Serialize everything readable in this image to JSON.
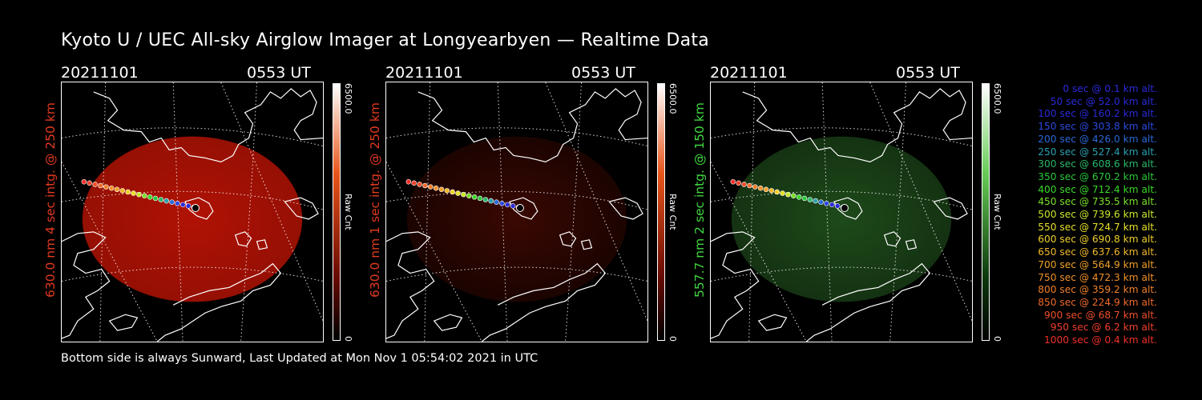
{
  "title": "Kyoto U / UEC All-sky Airglow Imager at Longyearbyen — Realtime Data",
  "footer": "Bottom side is always Sunward, Last Updated at Mon Nov  1 05:54:02 2021 in UTC",
  "panels": [
    {
      "date": "20211101",
      "time": "0553 UT",
      "ylabel": "630.0 nm 4 sec intg. @ 250 km",
      "label_color": "#e23a1f",
      "image_color": "#b01204",
      "intensity": 1.0,
      "cbar_max": "6500.0",
      "cbar_min": "0",
      "cbar_label": "Raw Cnt",
      "cbar_top": "#ffffff",
      "cbar_mid": "#e8551a",
      "cbar_low": "#6a0b03"
    },
    {
      "date": "20211101",
      "time": "0553 UT",
      "ylabel": "630.0 nm 1 sec intg. @ 250 km",
      "label_color": "#e23a1f",
      "image_color": "#3a0802",
      "intensity": 0.55,
      "cbar_max": "6500.0",
      "cbar_min": "0",
      "cbar_label": "Raw Cnt",
      "cbar_top": "#ffffff",
      "cbar_mid": "#e8551a",
      "cbar_low": "#6a0b03"
    },
    {
      "date": "20211101",
      "time": "0553 UT",
      "ylabel": "557.7 nm 2 sec intg. @ 150 km",
      "label_color": "#40d640",
      "image_color": "#1e4a1a",
      "intensity": 0.8,
      "cbar_max": "6500.0",
      "cbar_min": "0",
      "cbar_label": "Raw Cnt",
      "cbar_top": "#ffffff",
      "cbar_mid": "#66cc55",
      "cbar_low": "#0d3a0d"
    }
  ],
  "legend": [
    {
      "text": "0 sec @    0.1 km alt.",
      "color": "#2a2ad8"
    },
    {
      "text": "50 sec @   52.0 km alt.",
      "color": "#2a2ad8"
    },
    {
      "text": "100 sec @  160.2 km alt.",
      "color": "#2a2ad8"
    },
    {
      "text": "150 sec @  303.8 km alt.",
      "color": "#2a4ae0"
    },
    {
      "text": "200 sec @  426.0 km alt.",
      "color": "#2a6ad8"
    },
    {
      "text": "250 sec @  527.4 km alt.",
      "color": "#2aa0b0"
    },
    {
      "text": "300 sec @  608.6 km alt.",
      "color": "#2ab86a"
    },
    {
      "text": "350 sec @  670.2 km alt.",
      "color": "#2ac83a"
    },
    {
      "text": "400 sec @  712.4 km alt.",
      "color": "#3ad82a"
    },
    {
      "text": "450 sec @  735.5 km alt.",
      "color": "#7ae02a"
    },
    {
      "text": "500 sec @  739.6 km alt.",
      "color": "#c8e82a"
    },
    {
      "text": "550 sec @  724.7 km alt.",
      "color": "#e8e02a"
    },
    {
      "text": "600 sec @  690.8 km alt.",
      "color": "#f0d02a"
    },
    {
      "text": "650 sec @  637.6 km alt.",
      "color": "#f0b82a"
    },
    {
      "text": "700 sec @  564.9 km alt.",
      "color": "#f0a02a"
    },
    {
      "text": "750 sec @  472.3 km alt.",
      "color": "#f0902a"
    },
    {
      "text": "800 sec @  359.2 km alt.",
      "color": "#f0802a"
    },
    {
      "text": "850 sec @  224.9 km alt.",
      "color": "#f06a2a"
    },
    {
      "text": "900 sec @   68.7 km alt.",
      "color": "#f0502a"
    },
    {
      "text": "950 sec @    6.2 km alt.",
      "color": "#f0402a"
    },
    {
      "text": "1000 sec @    0.4 km alt.",
      "color": "#f0302a"
    }
  ]
}
